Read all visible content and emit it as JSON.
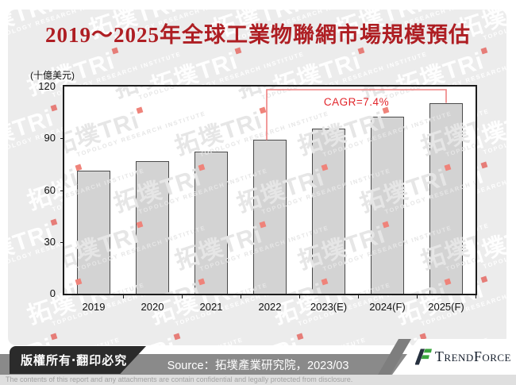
{
  "title": "2019～2025年全球工業物聯網市場規模預估",
  "chart_data": {
    "type": "bar",
    "title": "2019～2025年全球工業物聯網市場規模預估",
    "unit_label": "(十億美元)",
    "categories": [
      "2019",
      "2020",
      "2021",
      "2022",
      "2023(E)",
      "2024(F)",
      "2025(F)"
    ],
    "values": [
      71.5,
      77,
      82.5,
      89,
      95.5,
      102.5,
      110.5
    ],
    "ylim": [
      0,
      120
    ],
    "yticks": [
      0,
      30,
      60,
      90,
      120
    ],
    "grid": false,
    "annotation": {
      "text": "CAGR=7.4%",
      "from_index": 3,
      "to_index": 6
    },
    "colors": {
      "bar_fill": "#d3d3d3",
      "bar_border": "#4a4a4a",
      "annotation_text": "#e2262c",
      "bracket_line": "#ef8282",
      "title_red": "#ae1e23"
    }
  },
  "watermark": {
    "brand": "拓墣TRi",
    "subtitle": "TOPOLOGY RESEARCH INSTITUTE"
  },
  "footer": {
    "copyright": "版權所有‧翻印必究",
    "source": "Source：拓墣產業研究院，2023/03",
    "disclaimer": "The contents of this report and any attachments are contain confidential and legally protected from disclosure.",
    "logo_parts": {
      "cap1": "T",
      "rest1": "REND",
      "cap2": "F",
      "rest2": "ORCE"
    },
    "logo_green": "#3aa53e",
    "logo_dark": "#273140"
  }
}
